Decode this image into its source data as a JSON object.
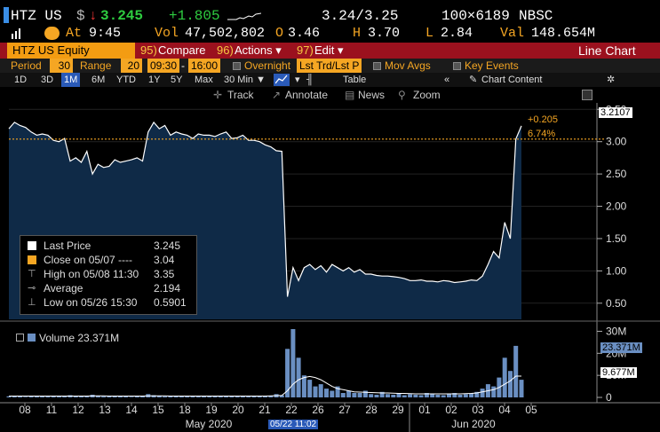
{
  "quote": {
    "ticker": "HTZ US",
    "currency": "$",
    "arrow": "↓",
    "last": "3.245",
    "change": "+1.805",
    "bid_ask": "3.24/3.25",
    "size": "100×6189",
    "exchange": "NBSC",
    "at_label": "At",
    "time": "9:45",
    "vol_label": "Vol",
    "volume": "47,502,802",
    "open_label": "O",
    "open": "3.46",
    "high_label": "H",
    "high": "3.70",
    "low_label": "L",
    "low": "2.84",
    "val_label": "Val",
    "value": "148.654M"
  },
  "menu": {
    "security": "HTZ US Equity",
    "compare": "Compare",
    "compare_num": "95)",
    "actions": "Actions ▾",
    "actions_num": "96)",
    "edit": "Edit ▾",
    "edit_num": "97)",
    "title": "Line Chart"
  },
  "settings": {
    "period_label": "Period",
    "period_value": "30",
    "range_label": "Range",
    "range_value": "20",
    "start_time": "09:30",
    "end_time": "16:00",
    "overnight": "Overnight",
    "field": "Lst Trd/Lst P",
    "mov_avgs": "Mov Avgs",
    "key_events": "Key Events"
  },
  "periods": {
    "items": [
      "1D",
      "3D",
      "1M",
      "6M",
      "YTD",
      "1Y",
      "5Y",
      "Max"
    ],
    "selected": "1M",
    "interval": "30 Min ▼",
    "table": "Table",
    "chart_content": "Chart Content"
  },
  "tools": {
    "track": "Track",
    "annotate": "Annotate",
    "news": "News",
    "zoom": "Zoom"
  },
  "legend": {
    "last_price_label": "Last Price",
    "last_price": "3.245",
    "close_label": "Close on 05/07 ----",
    "close": "3.04",
    "high_label": "High on 05/08 11:30",
    "high": "3.35",
    "average_label": "Average",
    "average": "2.194",
    "low_label": "Low on 05/26 15:30",
    "low": "0.5901"
  },
  "annotations": {
    "change": "+0.205",
    "change_pct": "6.74%",
    "price_tag": "3.2107",
    "volume_legend": "Volume 23.371M",
    "vol_tag": "23.371M",
    "vol_avg_tag": "9.677M",
    "date_tag": "05/22 11:02"
  },
  "colors": {
    "accent": "#f5a623",
    "menu": "#9b111e",
    "area_fill": "#0f2a47",
    "line": "#ffffff",
    "volume_bar": "#6a8fc2"
  },
  "chart_data": [
    {
      "type": "area",
      "title": "HTZ US Equity",
      "ylim": [
        0.25,
        3.6
      ],
      "yticks": [
        0.5,
        1.0,
        1.5,
        2.0,
        2.5,
        3.0,
        3.5
      ],
      "ytick_labels": [
        "0.50",
        "1.00",
        "1.50",
        "2.00",
        "2.50",
        "3.00",
        "3.50"
      ],
      "reference_close": 3.04,
      "x_day_labels": [
        "08",
        "11",
        "12",
        "13",
        "14",
        "15",
        "18",
        "19",
        "20",
        "21",
        "22",
        "26",
        "27",
        "28",
        "29",
        "01",
        "02",
        "03",
        "04",
        "05"
      ],
      "x_month_labels": [
        "May 2020",
        "Jun 2020"
      ],
      "series": [
        {
          "name": "Last Price",
          "values": [
            3.2,
            3.3,
            3.25,
            3.22,
            3.15,
            3.1,
            3.12,
            3.1,
            3.02,
            3.0,
            3.05,
            2.7,
            2.75,
            2.68,
            2.85,
            2.5,
            2.65,
            2.6,
            2.62,
            2.72,
            2.68,
            2.7,
            2.72,
            2.75,
            2.7,
            3.15,
            3.3,
            3.2,
            3.25,
            3.1,
            3.15,
            3.12,
            3.1,
            3.05,
            3.12,
            3.1,
            3.1,
            3.08,
            3.12,
            3.15,
            3.05,
            3.06,
            3.1,
            3.02,
            3.02,
            3.0,
            2.95,
            2.92,
            2.86,
            2.85,
            0.6,
            1.05,
            0.85,
            1.05,
            1.1,
            1.02,
            1.08,
            0.98,
            1.1,
            1.05,
            1.0,
            1.05,
            0.98,
            1.02,
            0.95,
            0.95,
            0.93,
            0.92,
            0.92,
            0.91,
            0.9,
            0.88,
            0.85,
            0.85,
            0.86,
            0.84,
            0.84,
            0.83,
            0.85,
            0.84,
            0.82,
            0.83,
            0.84,
            0.86,
            0.85,
            0.92,
            1.1,
            1.3,
            1.2,
            1.75,
            1.5,
            3.04,
            3.245
          ]
        }
      ]
    },
    {
      "type": "bar",
      "title": "Volume",
      "ylim": [
        0,
        33
      ],
      "yticks": [
        0,
        10,
        20,
        30
      ],
      "ytick_labels": [
        "0",
        "10M",
        "20M",
        "30M"
      ],
      "series": [
        {
          "name": "Volume",
          "values": [
            0.5,
            0.8,
            0.4,
            0.3,
            0.4,
            0.6,
            0.5,
            0.4,
            0.8,
            0.5,
            0.6,
            1.0,
            0.6,
            0.4,
            0.5,
            1.2,
            0.7,
            0.5,
            0.4,
            0.6,
            0.5,
            0.4,
            0.3,
            0.5,
            0.6,
            1.5,
            1.0,
            0.7,
            0.5,
            0.6,
            0.5,
            0.4,
            0.5,
            0.4,
            0.5,
            0.6,
            0.5,
            0.4,
            0.5,
            0.6,
            0.5,
            0.4,
            0.4,
            0.5,
            0.6,
            0.5,
            0.8,
            0.7,
            1.5,
            1.0,
            22,
            31,
            18,
            10,
            8,
            5,
            6,
            4,
            3,
            5,
            2,
            3,
            2,
            2,
            3,
            1.5,
            1.2,
            2.5,
            1.5,
            1.2,
            2.0,
            1.0,
            1.5,
            1.2,
            1.0,
            2.0,
            1.5,
            1.2,
            1.0,
            1.5,
            2.0,
            1.2,
            1.5,
            1.8,
            2.5,
            4.0,
            6.0,
            5.0,
            9.0,
            18.0,
            12.0,
            23.371,
            8.0
          ]
        },
        {
          "name": "Volume Avg",
          "values": [
            0.6,
            0.6,
            0.6,
            0.6,
            0.6,
            0.6,
            0.6,
            0.6,
            0.6,
            0.6,
            0.6,
            0.6,
            0.6,
            0.6,
            0.6,
            0.7,
            0.7,
            0.7,
            0.6,
            0.6,
            0.6,
            0.6,
            0.6,
            0.6,
            0.6,
            0.7,
            0.7,
            0.7,
            0.7,
            0.6,
            0.6,
            0.6,
            0.6,
            0.6,
            0.6,
            0.6,
            0.6,
            0.6,
            0.6,
            0.6,
            0.6,
            0.6,
            0.6,
            0.6,
            0.6,
            0.6,
            0.6,
            0.7,
            0.8,
            0.9,
            3.0,
            6.0,
            8.0,
            9.0,
            9.5,
            9.0,
            8.0,
            6.5,
            5.0,
            4.0,
            3.5,
            3.0,
            2.5,
            2.4,
            2.3,
            2.2,
            2.1,
            2.0,
            2.0,
            1.9,
            1.8,
            1.8,
            1.7,
            1.6,
            1.6,
            1.6,
            1.6,
            1.6,
            1.6,
            1.6,
            1.6,
            1.6,
            1.7,
            1.8,
            2.0,
            2.5,
            3.0,
            3.5,
            4.5,
            6.0,
            7.5,
            9.677,
            9.677
          ]
        }
      ]
    }
  ]
}
